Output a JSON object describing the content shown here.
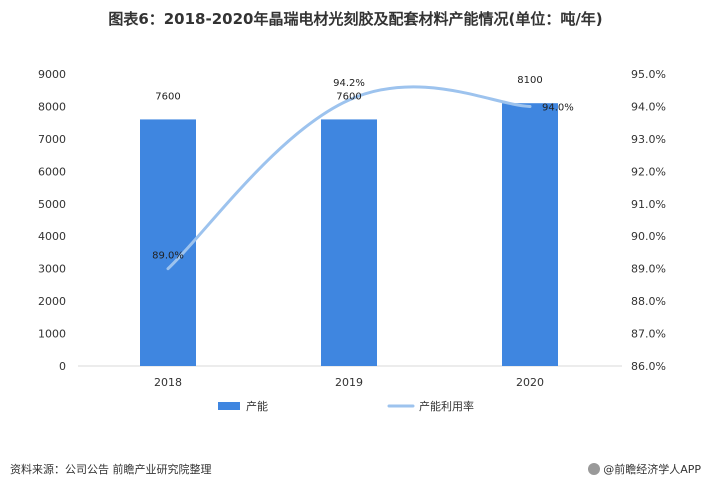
{
  "title": "图表6：2018-2020年晶瑞电材光刻胶及配套材料产能情况(单位：吨/年)",
  "source": "资料来源：公司公告 前瞻产业研究院整理",
  "brand": "@前瞻经济学人APP",
  "chart_data": {
    "type": "bar",
    "categories": [
      "2018",
      "2019",
      "2020"
    ],
    "series": [
      {
        "name": "产能",
        "type": "bar",
        "axis": "left",
        "color": "#3f86e0",
        "values": [
          7600,
          7600,
          8100
        ],
        "labels": [
          "7600",
          "7600",
          "8100"
        ]
      },
      {
        "name": "产能利用率",
        "type": "line",
        "axis": "right",
        "color": "#9dc3ee",
        "values": [
          89.0,
          94.2,
          94.0
        ],
        "labels": [
          "89.0%",
          "94.2%",
          "94.0%"
        ]
      }
    ],
    "y_left": {
      "range": [
        0,
        9000
      ],
      "ticks": [
        "0",
        "1000",
        "2000",
        "3000",
        "4000",
        "5000",
        "6000",
        "7000",
        "8000",
        "9000"
      ]
    },
    "y_right": {
      "range": [
        86.0,
        95.0
      ],
      "ticks": [
        "86.0%",
        "87.0%",
        "88.0%",
        "89.0%",
        "90.0%",
        "91.0%",
        "92.0%",
        "93.0%",
        "94.0%",
        "95.0%"
      ]
    },
    "grid": false,
    "legend_position": "bottom"
  }
}
